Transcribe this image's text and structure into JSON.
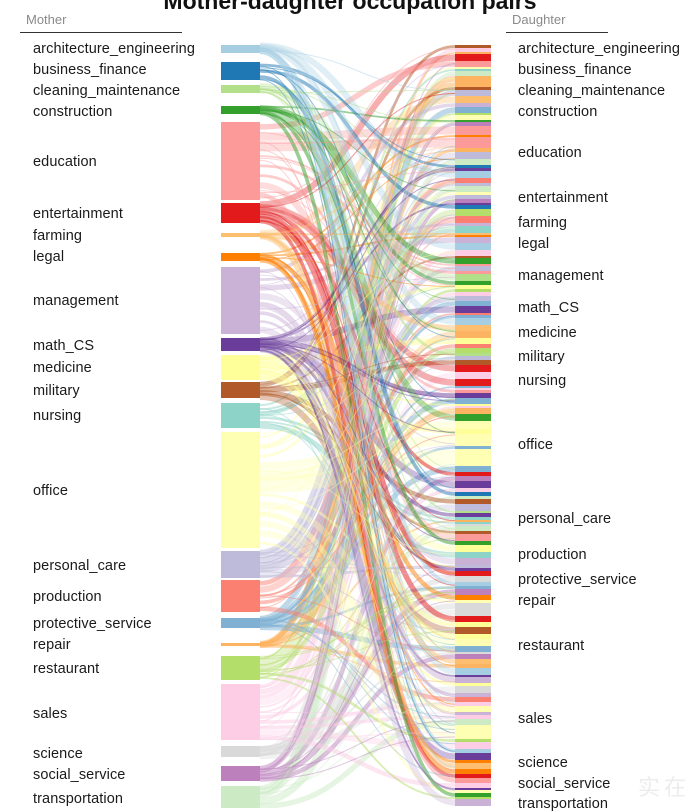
{
  "title": "Mother-daughter occupation pairs",
  "mother_header": "Mother",
  "daughter_header": "Daughter",
  "occupations": [
    "architecture_engineering",
    "business_finance",
    "cleaning_maintenance",
    "construction",
    "education",
    "entertainment",
    "farming",
    "legal",
    "management",
    "math_CS",
    "medicine",
    "military",
    "nursing",
    "office",
    "personal_care",
    "production",
    "protective_service",
    "repair",
    "restaurant",
    "sales",
    "science",
    "social_service",
    "transportation"
  ],
  "colors": {
    "architecture_engineering": "#a6cee3",
    "business_finance": "#1f78b4",
    "cleaning_maintenance": "#b2df8a",
    "construction": "#33a02c",
    "education": "#fb9a99",
    "entertainment": "#e31a1c",
    "farming": "#fdbf6f",
    "legal": "#ff7f00",
    "management": "#cab2d6",
    "math_CS": "#6a3d9a",
    "medicine": "#ffff99",
    "military": "#b15928",
    "nursing": "#8dd3c7",
    "office": "#ffffb3",
    "personal_care": "#bebada",
    "production": "#fb8072",
    "protective_service": "#80b1d3",
    "repair": "#fdb462",
    "restaurant": "#b3de69",
    "sales": "#fccde5",
    "science": "#d9d9d9",
    "social_service": "#bc80bd",
    "transportation": "#ccebc5"
  },
  "watermark": "实在"
}
